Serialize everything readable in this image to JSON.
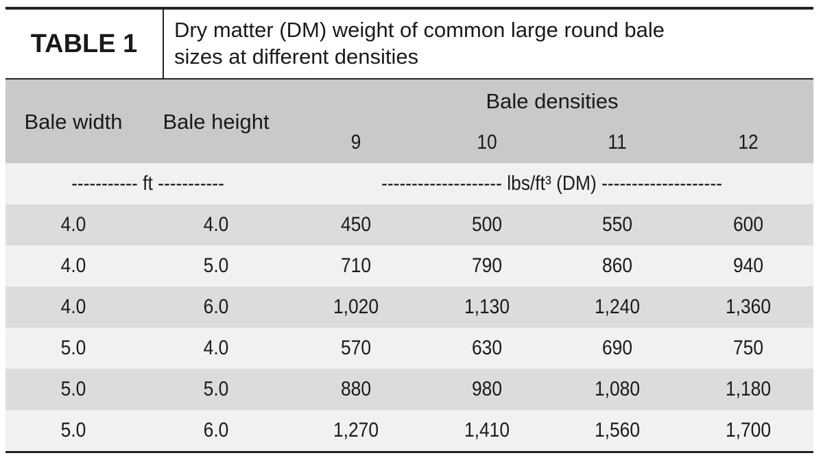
{
  "header": {
    "label": "TABLE 1",
    "caption": [
      "Dry matter (DM) weight of common large round bale",
      "sizes at different densities"
    ]
  },
  "table": {
    "columns": [
      "Bale width",
      "Bale height"
    ],
    "group_header": "Bale densities",
    "densities": [
      "9",
      "10",
      "11",
      "12"
    ],
    "units": [
      "----------- ft -----------",
      "-------------------- lbs/ft³ (DM) --------------------"
    ],
    "rows": [
      [
        "4.0",
        "4.0",
        "450",
        "500",
        "550",
        "600"
      ],
      [
        "4.0",
        "5.0",
        "710",
        "790",
        "860",
        "940"
      ],
      [
        "4.0",
        "6.0",
        "1,020",
        "1,130",
        "1,240",
        "1,360"
      ],
      [
        "5.0",
        "4.0",
        "570",
        "630",
        "690",
        "750"
      ],
      [
        "5.0",
        "5.0",
        "880",
        "980",
        "1,080",
        "1,180"
      ],
      [
        "5.0",
        "6.0",
        "1,270",
        "1,410",
        "1,560",
        "1,700"
      ]
    ]
  }
}
